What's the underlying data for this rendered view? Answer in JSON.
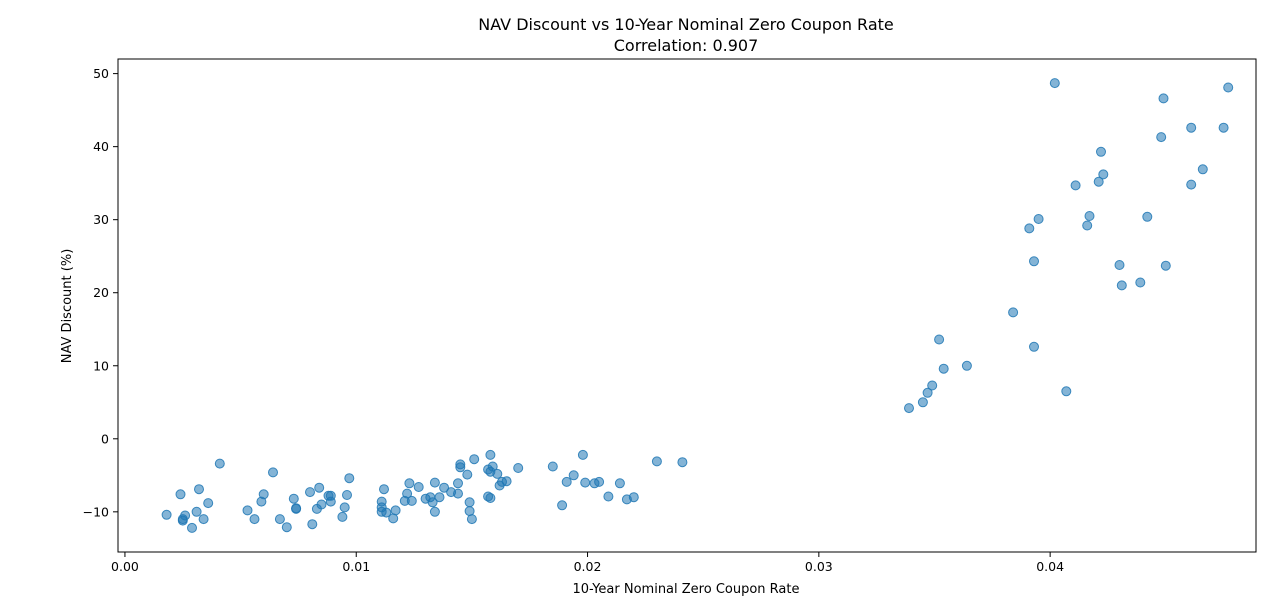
{
  "chart_data": {
    "type": "scatter",
    "title": "NAV Discount vs 10-Year Nominal Zero Coupon Rate",
    "subtitle": "Correlation: 0.907",
    "xlabel": "10-Year Nominal Zero Coupon Rate",
    "ylabel": "NAV Discount (%)",
    "xlim": [
      -0.0003,
      0.0489
    ],
    "ylim": [
      -15.5,
      52.0
    ],
    "xticks": [
      0.0,
      0.01,
      0.02,
      0.03,
      0.04
    ],
    "xtick_labels": [
      "0.00",
      "0.01",
      "0.02",
      "0.03",
      "0.04"
    ],
    "yticks": [
      -10,
      0,
      10,
      20,
      30,
      40,
      50
    ],
    "ytick_labels": [
      "−10",
      "0",
      "10",
      "20",
      "30",
      "40",
      "50"
    ],
    "grid": false,
    "legend": "none",
    "color": "#1f77b4",
    "points": [
      [
        0.0018,
        -10.4
      ],
      [
        0.0024,
        -7.6
      ],
      [
        0.0025,
        -11.0
      ],
      [
        0.0025,
        -11.2
      ],
      [
        0.0026,
        -10.5
      ],
      [
        0.0029,
        -12.2
      ],
      [
        0.0031,
        -10.0
      ],
      [
        0.0032,
        -6.9
      ],
      [
        0.0034,
        -11.0
      ],
      [
        0.0036,
        -8.8
      ],
      [
        0.0041,
        -3.4
      ],
      [
        0.0053,
        -9.8
      ],
      [
        0.0056,
        -11.0
      ],
      [
        0.0059,
        -8.6
      ],
      [
        0.006,
        -7.6
      ],
      [
        0.0064,
        -4.6
      ],
      [
        0.0067,
        -11.0
      ],
      [
        0.007,
        -12.1
      ],
      [
        0.0073,
        -8.2
      ],
      [
        0.0074,
        -9.6
      ],
      [
        0.0074,
        -9.5
      ],
      [
        0.008,
        -7.3
      ],
      [
        0.0081,
        -11.7
      ],
      [
        0.0083,
        -9.6
      ],
      [
        0.0084,
        -6.7
      ],
      [
        0.0085,
        -9.0
      ],
      [
        0.0088,
        -7.8
      ],
      [
        0.0089,
        -8.6
      ],
      [
        0.0089,
        -7.8
      ],
      [
        0.0094,
        -10.7
      ],
      [
        0.0095,
        -9.4
      ],
      [
        0.0096,
        -7.7
      ],
      [
        0.0097,
        -5.4
      ],
      [
        0.0111,
        -9.4
      ],
      [
        0.0111,
        -8.6
      ],
      [
        0.0111,
        -10.0
      ],
      [
        0.0112,
        -6.9
      ],
      [
        0.0113,
        -10.1
      ],
      [
        0.0116,
        -10.9
      ],
      [
        0.0117,
        -9.8
      ],
      [
        0.0121,
        -8.5
      ],
      [
        0.0122,
        -7.5
      ],
      [
        0.0123,
        -6.1
      ],
      [
        0.0124,
        -8.5
      ],
      [
        0.0127,
        -6.6
      ],
      [
        0.013,
        -8.2
      ],
      [
        0.0132,
        -8.0
      ],
      [
        0.0133,
        -8.7
      ],
      [
        0.0134,
        -10.0
      ],
      [
        0.0134,
        -6.0
      ],
      [
        0.0136,
        -8.0
      ],
      [
        0.0138,
        -6.7
      ],
      [
        0.0141,
        -7.3
      ],
      [
        0.0144,
        -7.5
      ],
      [
        0.0144,
        -6.1
      ],
      [
        0.0145,
        -3.9
      ],
      [
        0.0145,
        -3.5
      ],
      [
        0.0148,
        -4.9
      ],
      [
        0.0149,
        -9.9
      ],
      [
        0.0149,
        -8.7
      ],
      [
        0.015,
        -11.0
      ],
      [
        0.0151,
        -2.8
      ],
      [
        0.0157,
        -7.9
      ],
      [
        0.0157,
        -4.2
      ],
      [
        0.0158,
        -8.1
      ],
      [
        0.0158,
        -4.5
      ],
      [
        0.0158,
        -2.2
      ],
      [
        0.0159,
        -3.8
      ],
      [
        0.0161,
        -4.8
      ],
      [
        0.0162,
        -6.4
      ],
      [
        0.0163,
        -5.9
      ],
      [
        0.0165,
        -5.8
      ],
      [
        0.017,
        -4.0
      ],
      [
        0.0185,
        -3.8
      ],
      [
        0.0189,
        -9.1
      ],
      [
        0.0191,
        -5.9
      ],
      [
        0.0194,
        -5.0
      ],
      [
        0.0198,
        -2.2
      ],
      [
        0.0199,
        -6.0
      ],
      [
        0.0203,
        -6.1
      ],
      [
        0.0205,
        -5.9
      ],
      [
        0.0209,
        -7.9
      ],
      [
        0.0214,
        -6.1
      ],
      [
        0.0217,
        -8.3
      ],
      [
        0.022,
        -8.0
      ],
      [
        0.023,
        -3.1
      ],
      [
        0.0241,
        -3.2
      ],
      [
        0.0339,
        4.2
      ],
      [
        0.0345,
        5.0
      ],
      [
        0.0347,
        6.3
      ],
      [
        0.0349,
        7.3
      ],
      [
        0.0352,
        13.6
      ],
      [
        0.0354,
        9.6
      ],
      [
        0.0364,
        10.0
      ],
      [
        0.0384,
        17.3
      ],
      [
        0.0391,
        28.8
      ],
      [
        0.0393,
        24.3
      ],
      [
        0.0393,
        12.6
      ],
      [
        0.0395,
        30.1
      ],
      [
        0.0402,
        48.7
      ],
      [
        0.0407,
        6.5
      ],
      [
        0.0411,
        34.7
      ],
      [
        0.0416,
        29.2
      ],
      [
        0.0417,
        30.5
      ],
      [
        0.0421,
        35.2
      ],
      [
        0.0422,
        39.3
      ],
      [
        0.0423,
        36.2
      ],
      [
        0.043,
        23.8
      ],
      [
        0.0431,
        21.0
      ],
      [
        0.0439,
        21.4
      ],
      [
        0.0442,
        30.4
      ],
      [
        0.0448,
        41.3
      ],
      [
        0.0449,
        46.6
      ],
      [
        0.045,
        23.7
      ],
      [
        0.0461,
        42.6
      ],
      [
        0.0461,
        34.8
      ],
      [
        0.0466,
        36.9
      ],
      [
        0.0475,
        42.6
      ],
      [
        0.0477,
        48.1
      ]
    ]
  }
}
